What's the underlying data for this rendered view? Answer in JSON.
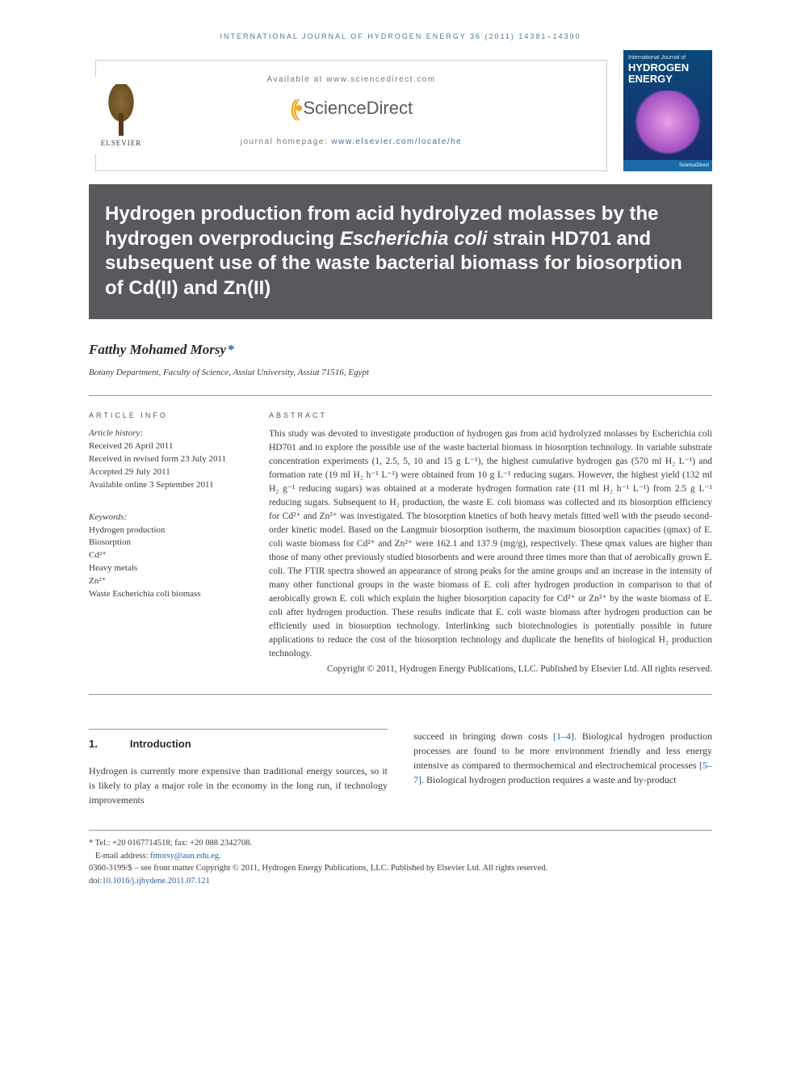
{
  "header": {
    "journal_ref": "INTERNATIONAL JOURNAL OF HYDROGEN ENERGY 36 (2011) 14381–14390",
    "available_at": "Available at www.sciencedirect.com",
    "provider": "ScienceDirect",
    "journal_home_label": "journal homepage: ",
    "journal_home_url": "www.elsevier.com/locate/he",
    "cover_small": "International Journal of",
    "cover_main": "HYDROGEN ENERGY",
    "elsevier": "ELSEVIER"
  },
  "title": {
    "line1": "Hydrogen production from acid hydrolyzed molasses by the hydrogen overproducing ",
    "italic": "Escherichia coli",
    "line2": " strain HD701 and subsequent use of the waste bacterial biomass for biosorption of Cd(II) and Zn(II)"
  },
  "author": {
    "name": "Fatthy Mohamed Morsy",
    "affiliation": "Botany Department, Faculty of Science, Assiut University, Assiut 71516, Egypt"
  },
  "article_info": {
    "heading": "ARTICLE INFO",
    "history_label": "Article history:",
    "received": "Received 26 April 2011",
    "revised": "Received in revised form 23 July 2011",
    "accepted": "Accepted 29 July 2011",
    "online": "Available online 3 September 2011",
    "keywords_label": "Keywords:",
    "keywords": [
      "Hydrogen production",
      "Biosorption",
      "Cd²⁺",
      "Heavy metals",
      "Zn²⁺",
      "Waste Escherichia coli biomass"
    ]
  },
  "abstract": {
    "heading": "ABSTRACT",
    "text": "This study was devoted to investigate production of hydrogen gas from acid hydrolyzed molasses by Escherichia coli HD701 and to explore the possible use of the waste bacterial biomass in biosorption technology. In variable substrate concentration experiments (1, 2.5, 5, 10 and 15 g L⁻¹), the highest cumulative hydrogen gas (570 ml H₂ L⁻¹) and formation rate (19 ml H₂ h⁻¹ L⁻¹) were obtained from 10 g L⁻¹ reducing sugars. However, the highest yield (132 ml H₂ g⁻¹ reducing sugars) was obtained at a moderate hydrogen formation rate (11 ml H₂ h⁻¹ L⁻¹) from 2.5 g L⁻¹ reducing sugars. Subsequent to H₂ production, the waste E. coli biomass was collected and its biosorption efficiency for Cd²⁺ and Zn²⁺ was investigated. The biosorption kinetics of both heavy metals fitted well with the pseudo second-order kinetic model. Based on the Langmuir biosorption isotherm, the maximum biosorption capacities (qmax) of E. coli waste biomass for Cd²⁺ and Zn²⁺ were 162.1 and 137.9 (mg/g), respectively. These qmax values are higher than those of many other previously studied biosorbents and were around three times more than that of aerobically grown E. coli. The FTIR spectra showed an appearance of strong peaks for the amine groups and an increase in the intensity of many other functional groups in the waste biomass of E. coli after hydrogen production in comparison to that of aerobically grown E. coli which explain the higher biosorption capacity for Cd²⁺ or Zn²⁺ by the waste biomass of E. coli after hydrogen production. These results indicate that E. coli waste biomass after hydrogen production can be efficiently used in biosorption technology. Interlinking such biotechnologies is potentially possible in future applications to reduce the cost of the biosorption technology and duplicate the benefits of biological H₂ production technology.",
    "copyright": "Copyright © 2011, Hydrogen Energy Publications, LLC. Published by Elsevier Ltd. All rights reserved."
  },
  "body": {
    "section_num": "1.",
    "section_title": "Introduction",
    "col1": "Hydrogen is currently more expensive than traditional energy sources, so it is likely to play a major role in the economy in the long run, if technology improvements",
    "col2_a": "succeed in bringing down costs ",
    "col2_cite1": "[1–4]",
    "col2_b": ". Biological hydrogen production processes are found to be more environment friendly and less energy intensive as compared to thermochemical and electrochemical processes ",
    "col2_cite2": "[5–7]",
    "col2_c": ". Biological hydrogen production requires a waste and by-product"
  },
  "footer": {
    "tel": "* Tel.: +20 0167714518; fax: +20 088 2342708.",
    "email_label": "E-mail address: ",
    "email": "fmorsy@aun.edu.eg",
    "copyright_line": "0360-3199/$ – see front matter Copyright © 2011, Hydrogen Energy Publications, LLC. Published by Elsevier Ltd. All rights reserved.",
    "doi_label": "doi:",
    "doi": "10.1016/j.ijhydene.2011.07.121"
  },
  "colors": {
    "title_bg": "#59585d",
    "link": "#2a5aa0",
    "header_ref": "#4d7a94"
  }
}
